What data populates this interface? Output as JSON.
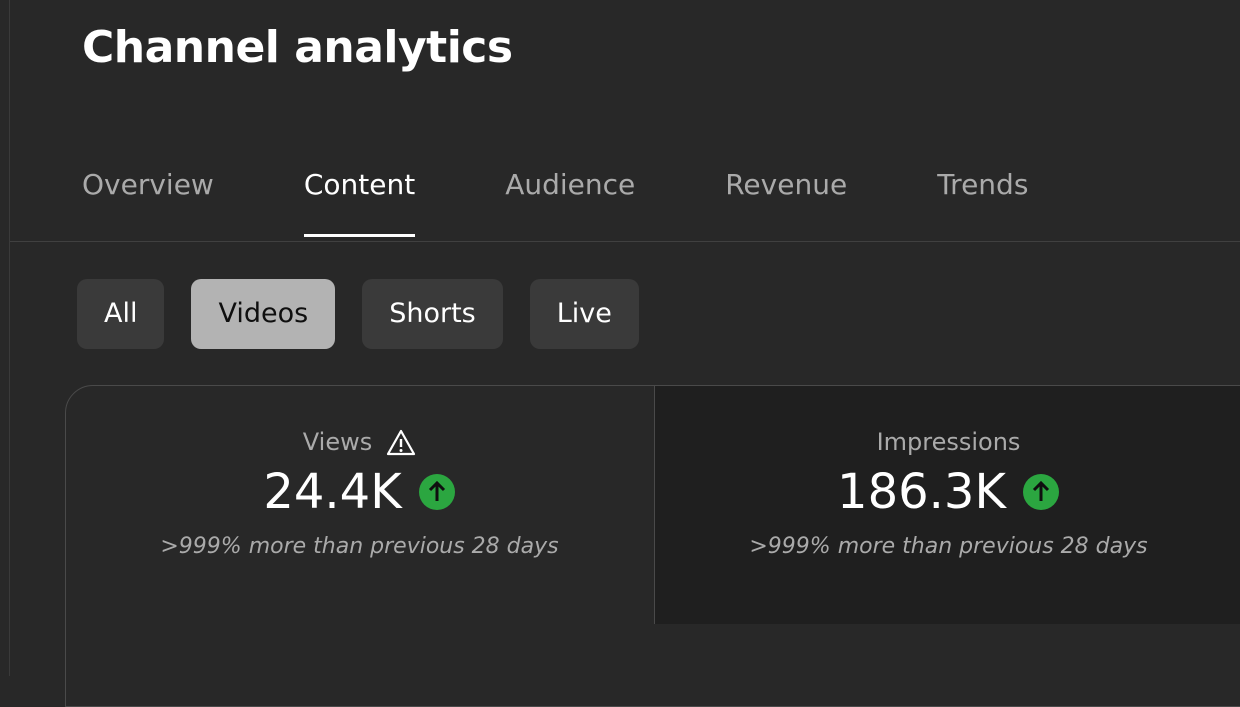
{
  "header": {
    "title": "Channel analytics"
  },
  "tabs": [
    {
      "label": "Overview",
      "selected": false
    },
    {
      "label": "Content",
      "selected": true
    },
    {
      "label": "Audience",
      "selected": false
    },
    {
      "label": "Revenue",
      "selected": false
    },
    {
      "label": "Trends",
      "selected": false
    }
  ],
  "chips": [
    {
      "label": "All",
      "selected": false
    },
    {
      "label": "Videos",
      "selected": true
    },
    {
      "label": "Shorts",
      "selected": false
    },
    {
      "label": "Live",
      "selected": false
    }
  ],
  "metrics": [
    {
      "label": "Views",
      "warning": true,
      "value": "24.4K",
      "comparison": ">999% more than previous 28 days",
      "selected": false
    },
    {
      "label": "Impressions",
      "warning": false,
      "value": "186.3K",
      "comparison": ">999% more than previous 28 days",
      "selected": true
    }
  ]
}
